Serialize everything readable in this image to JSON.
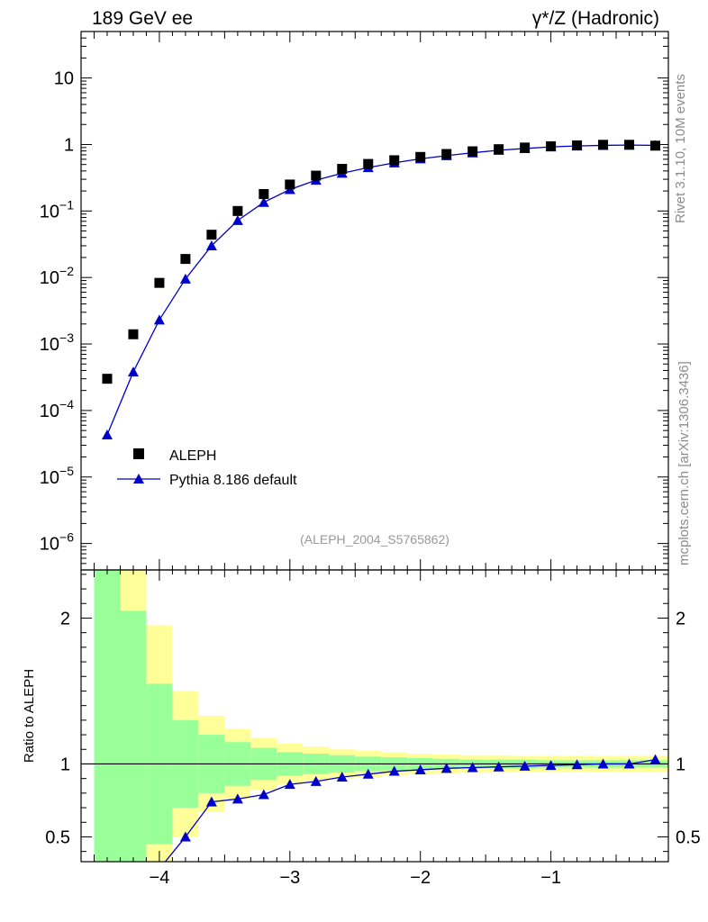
{
  "header": {
    "left": "189 GeV ee",
    "right": "γ*/Z (Hadronic)"
  },
  "side_text": {
    "top": "Rivet 3.1.10,  10M events",
    "bottom": "mcplots.cern.ch [arXiv:1306.3436]"
  },
  "analysis_id": "(ALEPH_2004_S5765862)",
  "colors": {
    "data": "#000000",
    "mc": "#0000cc",
    "band_inner": "#99ff99",
    "band_outer": "#ffff99"
  },
  "chart_data": [
    {
      "type": "scatter",
      "yscale": "log",
      "ylim": [
        4e-07,
        50
      ],
      "xlim": [
        -4.6,
        -0.1
      ],
      "legend": "bottom-left",
      "yticks": [
        {
          "value": 1e-06,
          "base": "10",
          "exp": "−6"
        },
        {
          "value": 1e-05,
          "base": "10",
          "exp": "−5"
        },
        {
          "value": 0.0001,
          "base": "10",
          "exp": "−4"
        },
        {
          "value": 0.001,
          "base": "10",
          "exp": "−3"
        },
        {
          "value": 0.01,
          "base": "10",
          "exp": "−2"
        },
        {
          "value": 0.1,
          "base": "10",
          "exp": "−1"
        },
        {
          "value": 1,
          "base": "1",
          "exp": ""
        },
        {
          "value": 10,
          "base": "10",
          "exp": ""
        }
      ],
      "series": [
        {
          "name": "ALEPH",
          "marker": "square",
          "x": [
            -4.4,
            -4.2,
            -4.0,
            -3.8,
            -3.6,
            -3.4,
            -3.2,
            -3.0,
            -2.8,
            -2.6,
            -2.4,
            -2.2,
            -2.0,
            -1.8,
            -1.6,
            -1.4,
            -1.2,
            -1.0,
            -0.8,
            -0.6,
            -0.4,
            -0.2
          ],
          "y": [
            0.0003,
            0.0014,
            0.0083,
            0.019,
            0.044,
            0.1,
            0.18,
            0.25,
            0.34,
            0.43,
            0.51,
            0.58,
            0.65,
            0.72,
            0.79,
            0.85,
            0.9,
            0.94,
            0.97,
            0.99,
            0.99,
            0.96
          ]
        },
        {
          "name": "Pythia 8.186 default",
          "marker": "triangle",
          "x": [
            -4.4,
            -4.2,
            -4.0,
            -3.8,
            -3.6,
            -3.4,
            -3.2,
            -3.0,
            -2.8,
            -2.6,
            -2.4,
            -2.2,
            -2.0,
            -1.8,
            -1.6,
            -1.4,
            -1.2,
            -1.0,
            -0.8,
            -0.6,
            -0.4,
            -0.2
          ],
          "y": [
            4.3e-05,
            0.00038,
            0.0023,
            0.0095,
            0.03,
            0.072,
            0.135,
            0.21,
            0.29,
            0.37,
            0.45,
            0.53,
            0.61,
            0.68,
            0.75,
            0.82,
            0.87,
            0.92,
            0.95,
            0.97,
            0.98,
            0.97
          ]
        }
      ]
    },
    {
      "type": "line",
      "ylabel": "Ratio to ALEPH",
      "ylim": [
        0.33,
        2.33
      ],
      "xlim": [
        -4.6,
        -0.1
      ],
      "yticks": [
        0.5,
        1,
        2
      ],
      "xticks": [
        -4,
        -3,
        -2,
        -1
      ],
      "xtick_labels": [
        "−4",
        "−3",
        "−2",
        "−1"
      ],
      "ratio": {
        "name": "Pythia 8.186 default",
        "x": [
          -4.2,
          -4.0,
          -3.8,
          -3.6,
          -3.4,
          -3.2,
          -3.0,
          -2.8,
          -2.6,
          -2.4,
          -2.2,
          -2.0,
          -1.8,
          -1.6,
          -1.4,
          -1.2,
          -1.0,
          -0.8,
          -0.6,
          -0.4,
          -0.2
        ],
        "y": [
          0.27,
          0.28,
          0.5,
          0.74,
          0.76,
          0.79,
          0.86,
          0.88,
          0.91,
          0.93,
          0.95,
          0.96,
          0.97,
          0.975,
          0.98,
          0.985,
          0.99,
          0.995,
          1.0,
          1.0,
          1.03
        ]
      },
      "bands": {
        "edges": [
          -4.5,
          -4.3,
          -4.1,
          -3.9,
          -3.7,
          -3.5,
          -3.3,
          -3.1,
          -2.9,
          -2.7,
          -2.5,
          -2.3,
          -2.1,
          -1.9,
          -1.7,
          -1.5,
          -1.3,
          -1.1,
          -0.9,
          -0.7,
          -0.5,
          -0.3,
          -0.1
        ],
        "inner_half": [
          2.0,
          1.05,
          0.55,
          0.3,
          0.2,
          0.15,
          0.11,
          0.08,
          0.07,
          0.06,
          0.05,
          0.045,
          0.04,
          0.035,
          0.03,
          0.03,
          0.03,
          0.025,
          0.025,
          0.025,
          0.025,
          0.025
        ],
        "outer_half": [
          2.0,
          1.4,
          0.95,
          0.5,
          0.33,
          0.24,
          0.18,
          0.14,
          0.12,
          0.1,
          0.09,
          0.08,
          0.07,
          0.065,
          0.06,
          0.06,
          0.055,
          0.055,
          0.055,
          0.055,
          0.055,
          0.055
        ]
      }
    }
  ]
}
